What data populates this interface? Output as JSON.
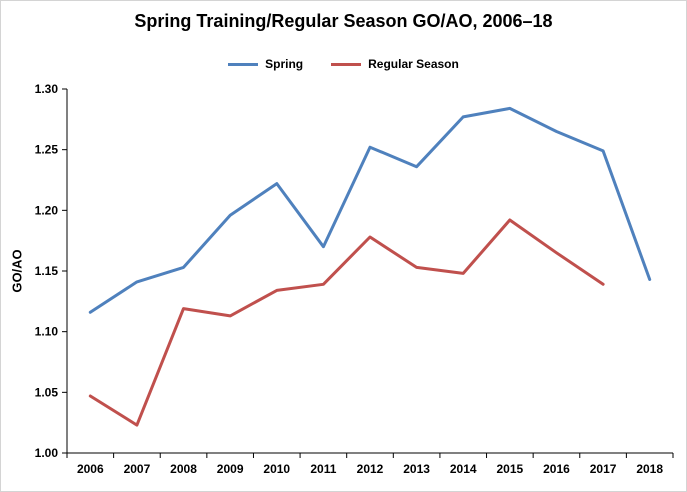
{
  "chart_data": {
    "type": "line",
    "title": "Spring Training/Regular Season GO/AO, 2006–18",
    "xlabel": "",
    "ylabel": "GO/AO",
    "x": [
      2006,
      2007,
      2008,
      2009,
      2010,
      2011,
      2012,
      2013,
      2014,
      2015,
      2016,
      2017,
      2018
    ],
    "series": [
      {
        "name": "Spring",
        "color": "#4F81BD",
        "values": [
          1.116,
          1.141,
          1.153,
          1.196,
          1.222,
          1.17,
          1.252,
          1.236,
          1.277,
          1.284,
          1.265,
          1.249,
          1.143
        ]
      },
      {
        "name": "Regular Season",
        "color": "#C0504D",
        "values": [
          1.047,
          1.023,
          1.119,
          1.113,
          1.134,
          1.139,
          1.178,
          1.153,
          1.148,
          1.192,
          1.165,
          1.139,
          null
        ]
      }
    ],
    "ylim": [
      1.0,
      1.3
    ],
    "ytick_step": 0.05,
    "legend_position": "top",
    "grid": false,
    "line_width": 3
  }
}
